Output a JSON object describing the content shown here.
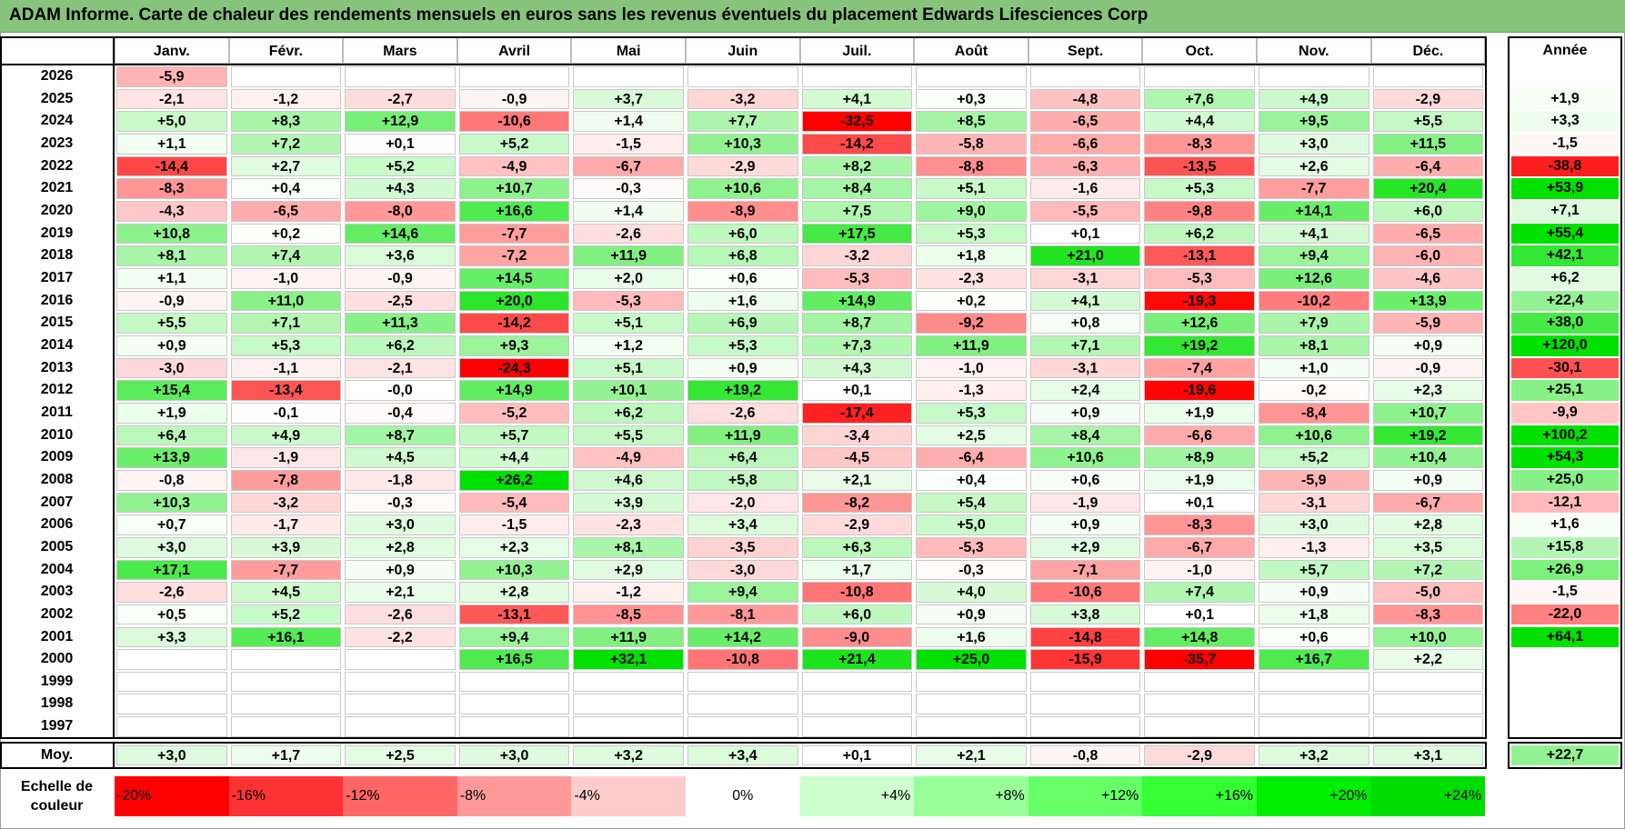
{
  "title": "ADAM Informe. Carte de chaleur des rendements mensuels en euros sans les revenus éventuels du placement Edwards Lifesciences Corp",
  "chart_data": {
    "type": "heatmap",
    "months": [
      "Janv.",
      "Févr.",
      "Mars",
      "Avril",
      "Mai",
      "Juin",
      "Juil.",
      "Août",
      "Sept.",
      "Oct.",
      "Nov.",
      "Déc."
    ],
    "year_col_label": "Année",
    "rows": [
      {
        "year": "2026",
        "values": [
          "-5,9",
          "",
          "",
          "",
          "",
          "",
          "",
          "",
          "",
          "",
          "",
          ""
        ],
        "annual": ""
      },
      {
        "year": "2025",
        "values": [
          "-2,1",
          "-1,2",
          "-2,7",
          "-0,9",
          "+3,7",
          "-3,2",
          "+4,1",
          "+0,3",
          "-4,8",
          "+7,6",
          "+4,9",
          "-2,9"
        ],
        "annual": "+1,9"
      },
      {
        "year": "2024",
        "values": [
          "+5,0",
          "+8,3",
          "+12,9",
          "-10,6",
          "+1,4",
          "+7,7",
          "-32,5",
          "+8,5",
          "-6,5",
          "+4,4",
          "+9,5",
          "+5,5"
        ],
        "annual": "+3,3"
      },
      {
        "year": "2023",
        "values": [
          "+1,1",
          "+7,2",
          "+0,1",
          "+5,2",
          "-1,5",
          "+10,3",
          "-14,2",
          "-5,8",
          "-6,6",
          "-8,3",
          "+3,0",
          "+11,5"
        ],
        "annual": "-1,5"
      },
      {
        "year": "2022",
        "values": [
          "-14,4",
          "+2,7",
          "+5,2",
          "-4,9",
          "-6,7",
          "-2,9",
          "+8,2",
          "-8,8",
          "-6,3",
          "-13,5",
          "+2,6",
          "-6,4"
        ],
        "annual": "-38,8"
      },
      {
        "year": "2021",
        "values": [
          "-8,3",
          "+0,4",
          "+4,3",
          "+10,7",
          "-0,3",
          "+10,6",
          "+8,4",
          "+5,1",
          "-1,6",
          "+5,3",
          "-7,7",
          "+20,4"
        ],
        "annual": "+53,9"
      },
      {
        "year": "2020",
        "values": [
          "-4,3",
          "-6,5",
          "-8,0",
          "+16,6",
          "+1,4",
          "-8,9",
          "+7,5",
          "+9,0",
          "-5,5",
          "-9,8",
          "+14,1",
          "+6,0"
        ],
        "annual": "+7,1"
      },
      {
        "year": "2019",
        "values": [
          "+10,8",
          "+0,2",
          "+14,6",
          "-7,7",
          "-2,6",
          "+6,0",
          "+17,5",
          "+5,3",
          "+0,1",
          "+6,2",
          "+4,1",
          "-6,5"
        ],
        "annual": "+55,4"
      },
      {
        "year": "2018",
        "values": [
          "+8,1",
          "+7,4",
          "+3,6",
          "-7,2",
          "+11,9",
          "+6,8",
          "-3,2",
          "+1,8",
          "+21,0",
          "-13,1",
          "+9,4",
          "-6,0"
        ],
        "annual": "+42,1"
      },
      {
        "year": "2017",
        "values": [
          "+1,1",
          "-1,0",
          "-0,9",
          "+14,5",
          "+2,0",
          "+0,6",
          "-5,3",
          "-2,3",
          "-3,1",
          "-5,3",
          "+12,6",
          "-4,6"
        ],
        "annual": "+6,2"
      },
      {
        "year": "2016",
        "values": [
          "-0,9",
          "+11,0",
          "-2,5",
          "+20,0",
          "-5,3",
          "+1,6",
          "+14,9",
          "+0,2",
          "+4,1",
          "-19,3",
          "-10,2",
          "+13,9"
        ],
        "annual": "+22,4"
      },
      {
        "year": "2015",
        "values": [
          "+5,5",
          "+7,1",
          "+11,3",
          "-14,2",
          "+5,1",
          "+6,9",
          "+8,7",
          "-9,2",
          "+0,8",
          "+12,6",
          "+7,9",
          "-5,9"
        ],
        "annual": "+38,0"
      },
      {
        "year": "2014",
        "values": [
          "+0,9",
          "+5,3",
          "+6,2",
          "+9,3",
          "+1,2",
          "+5,3",
          "+7,3",
          "+11,9",
          "+7,1",
          "+19,2",
          "+8,1",
          "+0,9"
        ],
        "annual": "+120,0"
      },
      {
        "year": "2013",
        "values": [
          "-3,0",
          "-1,1",
          "-2,1",
          "-24,3",
          "+5,1",
          "+0,9",
          "+4,3",
          "-1,0",
          "-3,1",
          "-7,4",
          "+1,0",
          "-0,9"
        ],
        "annual": "-30,1"
      },
      {
        "year": "2012",
        "values": [
          "+15,4",
          "-13,4",
          "-0,0",
          "+14,9",
          "+10,1",
          "+19,2",
          "+0,1",
          "-1,3",
          "+2,4",
          "-19,6",
          "-0,2",
          "+2,3"
        ],
        "annual": "+25,1"
      },
      {
        "year": "2011",
        "values": [
          "+1,9",
          "-0,1",
          "-0,4",
          "-5,2",
          "+6,2",
          "-2,6",
          "-17,4",
          "+5,3",
          "+0,9",
          "+1,9",
          "-8,4",
          "+10,7"
        ],
        "annual": "-9,9"
      },
      {
        "year": "2010",
        "values": [
          "+6,4",
          "+4,9",
          "+8,7",
          "+5,7",
          "+5,5",
          "+11,9",
          "-3,4",
          "+2,5",
          "+8,4",
          "-6,6",
          "+10,6",
          "+19,2"
        ],
        "annual": "+100,2"
      },
      {
        "year": "2009",
        "values": [
          "+13,9",
          "-1,9",
          "+4,5",
          "+4,4",
          "-4,9",
          "+6,4",
          "-4,5",
          "-6,4",
          "+10,6",
          "+8,9",
          "+5,2",
          "+10,4"
        ],
        "annual": "+54,3"
      },
      {
        "year": "2008",
        "values": [
          "-0,8",
          "-7,8",
          "-1,8",
          "+26,2",
          "+4,6",
          "+5,8",
          "+2,1",
          "+0,4",
          "+0,6",
          "+1,9",
          "-5,9",
          "+0,9"
        ],
        "annual": "+25,0"
      },
      {
        "year": "2007",
        "values": [
          "+10,3",
          "-3,2",
          "-0,3",
          "-5,4",
          "+3,9",
          "-2,0",
          "-8,2",
          "+5,4",
          "-1,9",
          "+0,1",
          "-3,1",
          "-6,7"
        ],
        "annual": "-12,1"
      },
      {
        "year": "2006",
        "values": [
          "+0,7",
          "-1,7",
          "+3,0",
          "-1,5",
          "-2,3",
          "+3,4",
          "-2,9",
          "+5,0",
          "+0,9",
          "-8,3",
          "+3,0",
          "+2,8"
        ],
        "annual": "+1,6"
      },
      {
        "year": "2005",
        "values": [
          "+3,0",
          "+3,9",
          "+2,8",
          "+2,3",
          "+8,1",
          "-3,5",
          "+6,3",
          "-5,3",
          "+2,9",
          "-6,7",
          "-1,3",
          "+3,5"
        ],
        "annual": "+15,8"
      },
      {
        "year": "2004",
        "values": [
          "+17,1",
          "-7,7",
          "+0,9",
          "+10,3",
          "+2,9",
          "-3,0",
          "+1,7",
          "-0,3",
          "-7,1",
          "-1,0",
          "+5,7",
          "+7,2"
        ],
        "annual": "+26,9"
      },
      {
        "year": "2003",
        "values": [
          "-2,6",
          "+4,5",
          "+2,1",
          "+2,8",
          "-1,2",
          "+9,4",
          "-10,8",
          "+4,0",
          "-10,6",
          "+7,4",
          "+0,9",
          "-5,0"
        ],
        "annual": "-1,5"
      },
      {
        "year": "2002",
        "values": [
          "+0,5",
          "+5,2",
          "-2,6",
          "-13,1",
          "-8,5",
          "-8,1",
          "+6,0",
          "+0,9",
          "+3,8",
          "+0,1",
          "+1,8",
          "-8,3"
        ],
        "annual": "-22,0"
      },
      {
        "year": "2001",
        "values": [
          "+3,3",
          "+16,1",
          "-2,2",
          "+9,4",
          "+11,9",
          "+14,2",
          "-9,0",
          "+1,6",
          "-14,8",
          "+14,8",
          "+0,6",
          "+10,0"
        ],
        "annual": "+64,1"
      },
      {
        "year": "2000",
        "values": [
          "",
          "",
          "",
          "+16,5",
          "+32,1",
          "-10,8",
          "+21,4",
          "+25,0",
          "-15,9",
          "-35,7",
          "+16,7",
          "+2,2"
        ],
        "annual": ""
      },
      {
        "year": "1999",
        "values": [
          "",
          "",
          "",
          "",
          "",
          "",
          "",
          "",
          "",
          "",
          "",
          ""
        ],
        "annual": ""
      },
      {
        "year": "1998",
        "values": [
          "",
          "",
          "",
          "",
          "",
          "",
          "",
          "",
          "",
          "",
          "",
          ""
        ],
        "annual": ""
      },
      {
        "year": "1997",
        "values": [
          "",
          "",
          "",
          "",
          "",
          "",
          "",
          "",
          "",
          "",
          "",
          ""
        ],
        "annual": ""
      }
    ],
    "average": {
      "label": "Moy.",
      "values": [
        "+3,0",
        "+1,7",
        "+2,5",
        "+3,0",
        "+3,2",
        "+3,4",
        "+0,1",
        "+2,1",
        "-0,8",
        "-2,9",
        "+3,2",
        "+3,1"
      ],
      "annual": "+22,7"
    },
    "legend": {
      "label": "Echelle de couleur",
      "steps": [
        {
          "text": "-20%",
          "color": "#ff0000"
        },
        {
          "text": "-16%",
          "color": "#ff3333"
        },
        {
          "text": "-12%",
          "color": "#ff6666"
        },
        {
          "text": "-8%",
          "color": "#ff9999"
        },
        {
          "text": "-4%",
          "color": "#ffcccc"
        },
        {
          "text": "0%",
          "color": "#ffffff"
        },
        {
          "text": "+4%",
          "color": "#ccffcc"
        },
        {
          "text": "+8%",
          "color": "#99ff99"
        },
        {
          "text": "+12%",
          "color": "#66ff66"
        },
        {
          "text": "+16%",
          "color": "#33ff33"
        },
        {
          "text": "+20%",
          "color": "#00ee00"
        },
        {
          "text": "+24%",
          "color": "#00dd00"
        }
      ]
    }
  }
}
